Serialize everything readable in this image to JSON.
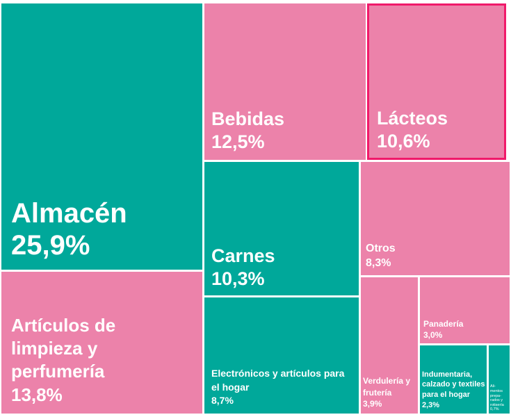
{
  "chart_data": {
    "type": "treemap",
    "colors": {
      "teal": "#00a89a",
      "pink": "#ec82aa",
      "highlight_border": "#f0196a"
    },
    "items": [
      {
        "label": "Almacén",
        "value": 25.9,
        "value_label": "25,9%",
        "color": "teal"
      },
      {
        "label": "Artículos de limpieza y perfumería",
        "value": 13.8,
        "value_label": "13,8%",
        "color": "pink"
      },
      {
        "label": "Bebidas",
        "value": 12.5,
        "value_label": "12,5%",
        "color": "pink"
      },
      {
        "label": "Lácteos",
        "value": 10.6,
        "value_label": "10,6%",
        "color": "pink",
        "highlighted": true
      },
      {
        "label": "Carnes",
        "value": 10.3,
        "value_label": "10,3%",
        "color": "teal"
      },
      {
        "label": "Electrónicos y artículos para el hogar",
        "value": 8.7,
        "value_label": "8,7%",
        "color": "teal"
      },
      {
        "label": "Otros",
        "value": 8.3,
        "value_label": "8,3%",
        "color": "pink"
      },
      {
        "label": "Verdulería y frutería",
        "value": 3.9,
        "value_label": "3,9%",
        "color": "pink"
      },
      {
        "label": "Panadería",
        "value": 3.0,
        "value_label": "3,0%",
        "color": "pink"
      },
      {
        "label": "Indumentaria, calzado y textiles para el hogar",
        "value": 2.3,
        "value_label": "2,3%",
        "color": "teal"
      },
      {
        "label": "Ali- mentos prepa- rados y rotisería",
        "value": 0.7,
        "value_label": "0,7%",
        "color": "teal"
      }
    ]
  }
}
